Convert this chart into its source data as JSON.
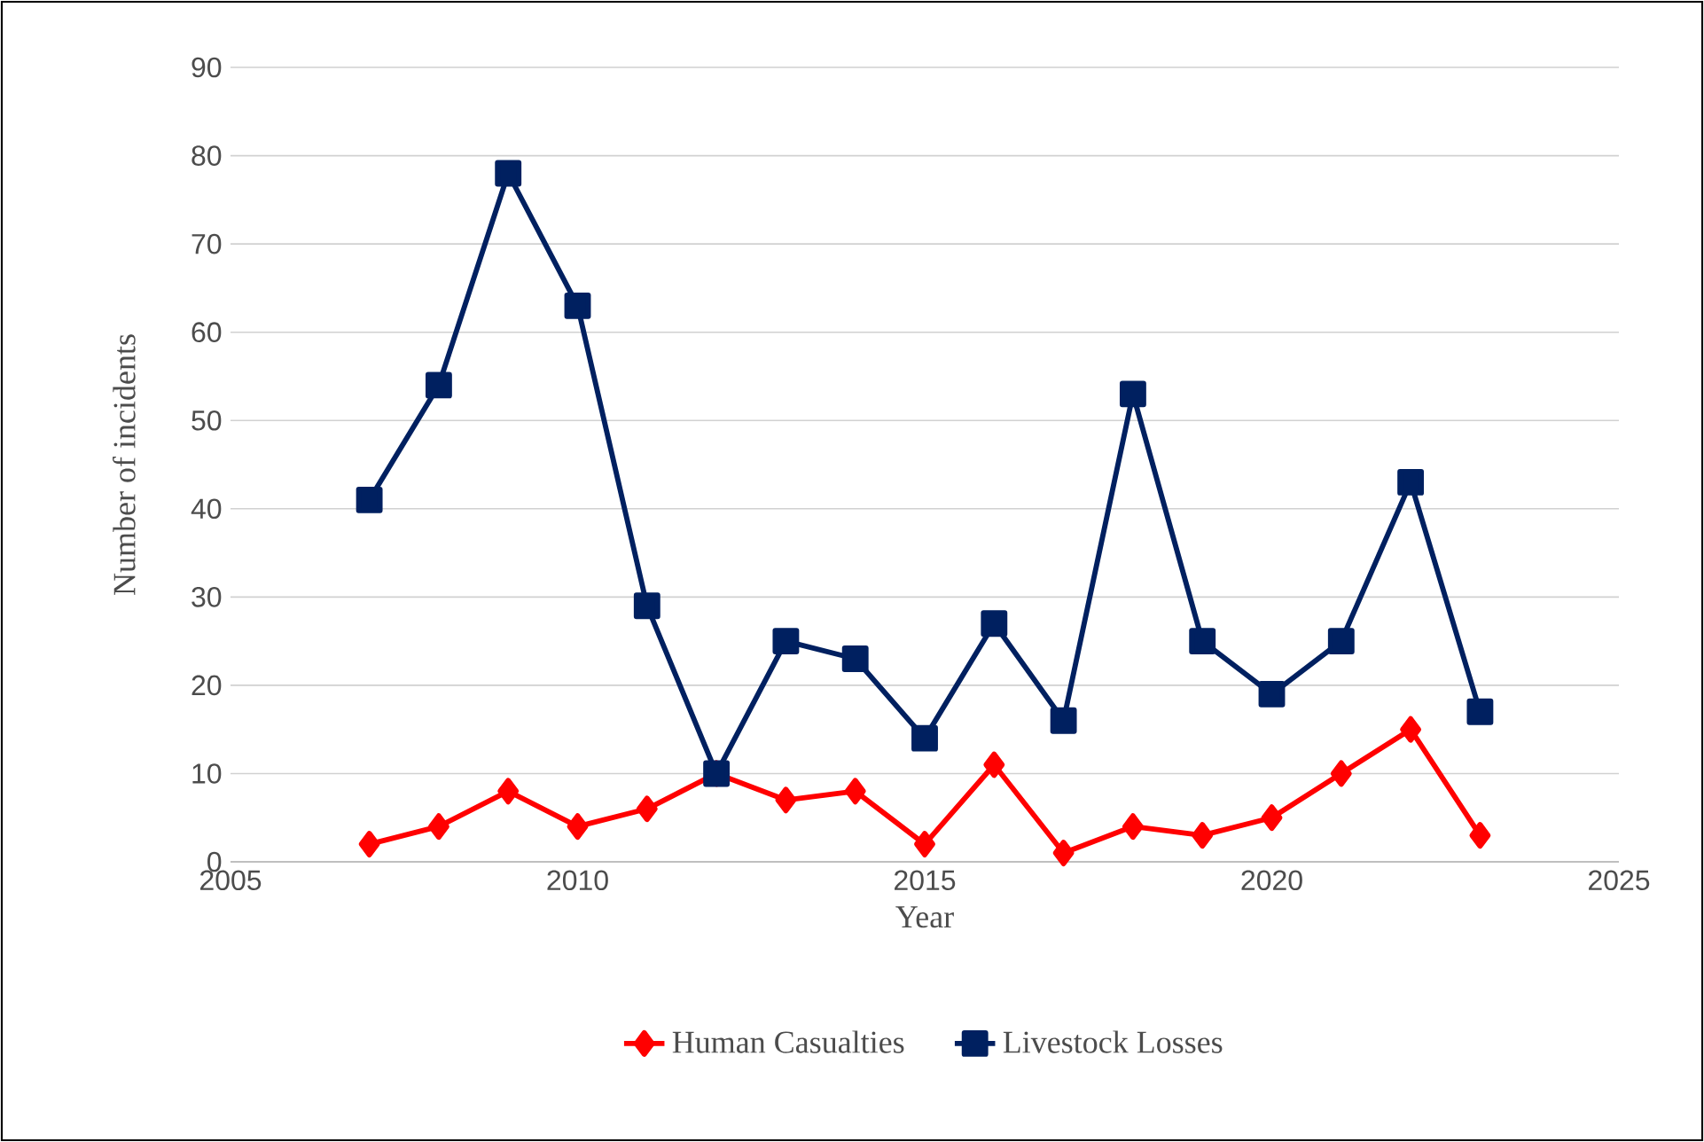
{
  "chart_data": {
    "type": "line",
    "xlabel": "Year",
    "ylabel": "Number of incidents",
    "x": [
      2007,
      2008,
      2009,
      2010,
      2011,
      2012,
      2013,
      2014,
      2015,
      2016,
      2017,
      2018,
      2019,
      2020,
      2021,
      2022,
      2023
    ],
    "series": [
      {
        "name": "Human Casualties",
        "color": "#ff0000",
        "marker": "diamond",
        "values": [
          2,
          4,
          8,
          4,
          6,
          10,
          7,
          8,
          2,
          11,
          1,
          4,
          3,
          5,
          10,
          15,
          3
        ]
      },
      {
        "name": "Livestock Losses",
        "color": "#002060",
        "marker": "square",
        "values": [
          41,
          54,
          78,
          63,
          29,
          10,
          25,
          23,
          14,
          27,
          16,
          53,
          25,
          19,
          25,
          43,
          17
        ]
      }
    ],
    "xlim": [
      2005,
      2025
    ],
    "xticks": [
      2005,
      2010,
      2015,
      2020,
      2025
    ],
    "ylim": [
      0,
      90
    ],
    "yticks": [
      0,
      10,
      20,
      30,
      40,
      50,
      60,
      70,
      80,
      90
    ],
    "grid": "y",
    "legend": "bottom",
    "line_style": "solid"
  }
}
